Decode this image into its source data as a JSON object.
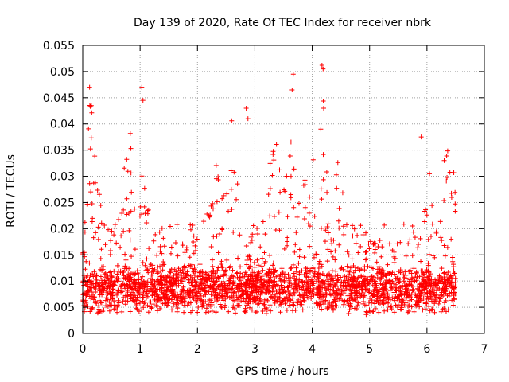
{
  "chart_data": {
    "type": "scatter",
    "title": "Day 139 of 2020, Rate Of TEC Index for receiver nbrk",
    "xlabel": "GPS time / hours",
    "ylabel": "ROTI / TECUs",
    "xlim": [
      0,
      7
    ],
    "ylim": [
      0,
      0.055
    ],
    "grid": true,
    "marker": "+",
    "marker_color": "#ff0000",
    "x_ticks": [
      0,
      1,
      2,
      3,
      4,
      5,
      6,
      7
    ],
    "x_tick_labels": [
      "0",
      "1",
      "2",
      "3",
      "4",
      "5",
      "6",
      "7"
    ],
    "y_ticks": [
      0,
      0.005,
      0.01,
      0.015,
      0.02,
      0.025,
      0.03,
      0.035,
      0.04,
      0.045,
      0.05,
      0.055
    ],
    "y_tick_labels": [
      "0",
      "0.005",
      "0.01",
      "0.015",
      "0.02",
      "0.025",
      "0.03",
      "0.035",
      "0.04",
      "0.045",
      "0.05",
      "0.055"
    ],
    "point_count": 2600,
    "x_range": [
      0,
      6.5
    ],
    "series": [
      {
        "name": "ROTI",
        "notable_points": [
          {
            "x": 0.12,
            "y": 0.047
          },
          {
            "x": 0.15,
            "y": 0.0435
          },
          {
            "x": 1.03,
            "y": 0.047
          },
          {
            "x": 1.05,
            "y": 0.0445
          },
          {
            "x": 2.85,
            "y": 0.043
          },
          {
            "x": 2.88,
            "y": 0.041
          },
          {
            "x": 3.67,
            "y": 0.0495
          },
          {
            "x": 3.65,
            "y": 0.0465
          },
          {
            "x": 4.17,
            "y": 0.0512
          },
          {
            "x": 4.19,
            "y": 0.0505
          },
          {
            "x": 4.2,
            "y": 0.043
          },
          {
            "x": 4.15,
            "y": 0.039
          },
          {
            "x": 5.9,
            "y": 0.0375
          },
          {
            "x": 6.3,
            "y": 0.033
          }
        ]
      }
    ]
  }
}
